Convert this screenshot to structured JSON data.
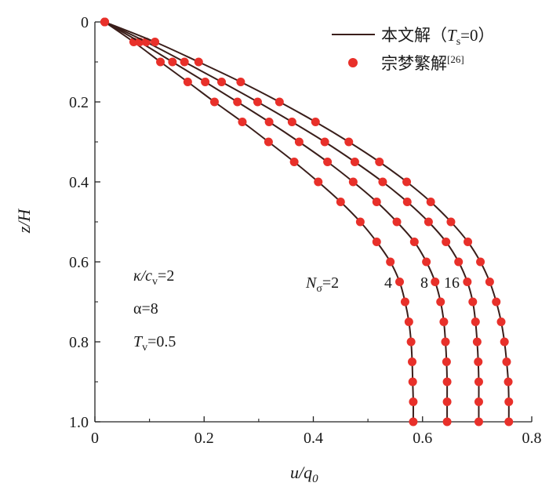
{
  "colors": {
    "line": "#3a1e1a",
    "marker": "#e8302a",
    "axis": "#222222"
  },
  "chart_data": {
    "type": "line",
    "xlabel": "u/q",
    "xlabel_sub": "0",
    "ylabel": "z/H",
    "xlim": [
      0,
      0.8
    ],
    "ylim": [
      0,
      1.0
    ],
    "y_inverted": true,
    "x_ticks": [
      "0",
      "0.2",
      "0.4",
      "0.6",
      "0.8"
    ],
    "y_ticks": [
      "0",
      "0.2",
      "0.4",
      "0.6",
      "0.8",
      "1.0"
    ],
    "legend": {
      "position": "top-right",
      "line_label": "本文解（",
      "line_label_T": "T",
      "line_label_sub": "s",
      "line_label_tail": "=0）",
      "marker_label": "宗梦繁解",
      "marker_label_ref": "[26]"
    },
    "series": [
      {
        "label": "N",
        "label_sub": "σ",
        "label_tail": "=2",
        "points": [
          [
            0.018,
            0
          ],
          [
            0.071,
            0.05
          ],
          [
            0.12,
            0.1
          ],
          [
            0.17,
            0.15
          ],
          [
            0.219,
            0.2
          ],
          [
            0.27,
            0.25
          ],
          [
            0.318,
            0.3
          ],
          [
            0.365,
            0.35
          ],
          [
            0.409,
            0.4
          ],
          [
            0.45,
            0.45
          ],
          [
            0.486,
            0.5
          ],
          [
            0.516,
            0.55
          ],
          [
            0.541,
            0.6
          ],
          [
            0.558,
            0.65
          ],
          [
            0.568,
            0.7
          ],
          [
            0.575,
            0.75
          ],
          [
            0.579,
            0.8
          ],
          [
            0.581,
            0.85
          ],
          [
            0.582,
            0.9
          ],
          [
            0.583,
            0.95
          ],
          [
            0.583,
            1.0
          ]
        ]
      },
      {
        "label": "4",
        "points": [
          [
            0.018,
            0
          ],
          [
            0.082,
            0.05
          ],
          [
            0.142,
            0.1
          ],
          [
            0.202,
            0.15
          ],
          [
            0.261,
            0.2
          ],
          [
            0.319,
            0.25
          ],
          [
            0.374,
            0.3
          ],
          [
            0.426,
            0.35
          ],
          [
            0.473,
            0.4
          ],
          [
            0.516,
            0.45
          ],
          [
            0.553,
            0.5
          ],
          [
            0.585,
            0.55
          ],
          [
            0.607,
            0.6
          ],
          [
            0.623,
            0.65
          ],
          [
            0.633,
            0.7
          ],
          [
            0.639,
            0.75
          ],
          [
            0.642,
            0.8
          ],
          [
            0.644,
            0.85
          ],
          [
            0.645,
            0.9
          ],
          [
            0.645,
            0.95
          ],
          [
            0.645,
            1.0
          ]
        ]
      },
      {
        "label": "8",
        "points": [
          [
            0.018,
            0
          ],
          [
            0.094,
            0.05
          ],
          [
            0.164,
            0.1
          ],
          [
            0.232,
            0.15
          ],
          [
            0.298,
            0.2
          ],
          [
            0.361,
            0.25
          ],
          [
            0.421,
            0.3
          ],
          [
            0.476,
            0.35
          ],
          [
            0.527,
            0.4
          ],
          [
            0.572,
            0.45
          ],
          [
            0.611,
            0.5
          ],
          [
            0.643,
            0.55
          ],
          [
            0.666,
            0.6
          ],
          [
            0.682,
            0.65
          ],
          [
            0.692,
            0.7
          ],
          [
            0.697,
            0.75
          ],
          [
            0.7,
            0.8
          ],
          [
            0.702,
            0.85
          ],
          [
            0.703,
            0.9
          ],
          [
            0.703,
            0.95
          ],
          [
            0.703,
            1.0
          ]
        ]
      },
      {
        "label": "16",
        "points": [
          [
            0.018,
            0
          ],
          [
            0.11,
            0.05
          ],
          [
            0.19,
            0.1
          ],
          [
            0.267,
            0.15
          ],
          [
            0.338,
            0.2
          ],
          [
            0.404,
            0.25
          ],
          [
            0.465,
            0.3
          ],
          [
            0.521,
            0.35
          ],
          [
            0.571,
            0.4
          ],
          [
            0.615,
            0.45
          ],
          [
            0.652,
            0.5
          ],
          [
            0.683,
            0.55
          ],
          [
            0.706,
            0.6
          ],
          [
            0.723,
            0.65
          ],
          [
            0.735,
            0.7
          ],
          [
            0.744,
            0.75
          ],
          [
            0.75,
            0.8
          ],
          [
            0.754,
            0.85
          ],
          [
            0.757,
            0.9
          ],
          [
            0.758,
            0.95
          ],
          [
            0.758,
            1.0
          ]
        ]
      }
    ],
    "annotations": {
      "kappa": "κ/c",
      "kappa_sub": "v",
      "kappa_tail": "=2",
      "alpha": "α=8",
      "tv": "T",
      "tv_sub": "v",
      "tv_tail": "=0.5"
    }
  }
}
